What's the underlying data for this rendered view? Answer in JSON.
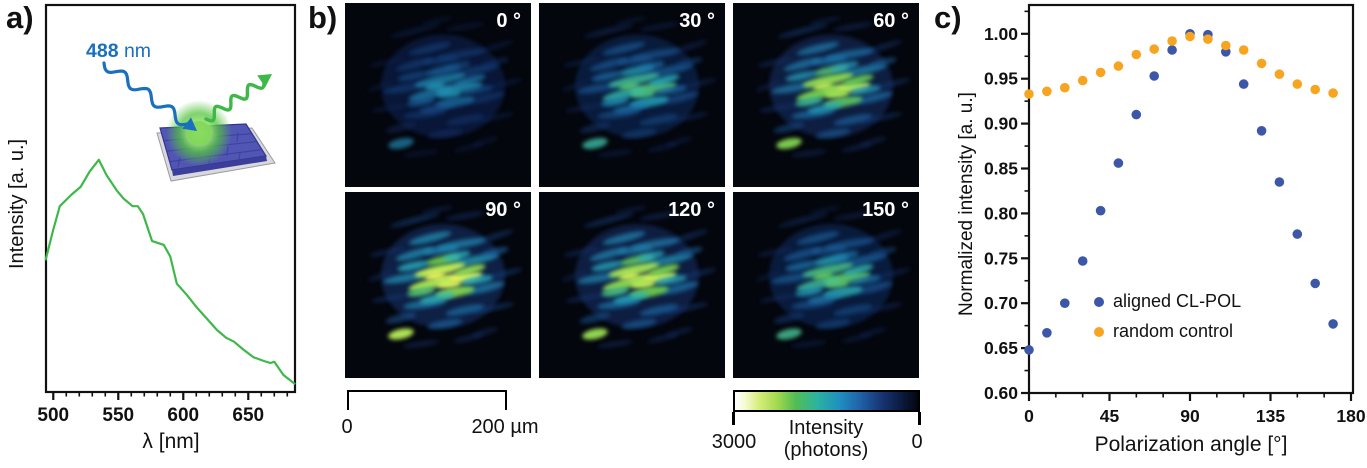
{
  "panel_a": {
    "label": "a)",
    "xlabel": "λ [nm]",
    "ylabel": "Intensity [a. u.]",
    "excitation": {
      "value": "488",
      "unit": " nm"
    }
  },
  "panel_b": {
    "label": "b)",
    "tiles": [
      {
        "label": "0 °",
        "relative_brightness": 0.55
      },
      {
        "label": "30 °",
        "relative_brightness": 0.72
      },
      {
        "label": "60 °",
        "relative_brightness": 0.91
      },
      {
        "label": "90 °",
        "relative_brightness": 1.0
      },
      {
        "label": "120 °",
        "relative_brightness": 0.95
      },
      {
        "label": "150 °",
        "relative_brightness": 0.75
      }
    ],
    "scale_bar": {
      "start_label": "0",
      "end_label": "200 µm"
    },
    "colorbar": {
      "left_label": "3000",
      "right_label": "0",
      "title_line1": "Intensity",
      "title_line2": "(photons)",
      "range_photons": [
        3000,
        0
      ]
    }
  },
  "panel_c": {
    "label": "c)",
    "xlabel": "Polarization angle [°]",
    "ylabel": "Normalized intensity [a. u.]",
    "legend": [
      {
        "label": "aligned CL-POL",
        "color": "#3c57a8"
      },
      {
        "label": "random control",
        "color": "#f7a521"
      }
    ]
  },
  "colors": {
    "spectrum_line": "#3eb848",
    "excitation_blue": "#1a6fbf",
    "aligned_series": "#3c57a8",
    "random_series": "#f7a521",
    "axis": "#111111"
  },
  "chart_data": [
    {
      "type": "line",
      "panel": "a",
      "title": "",
      "xlabel": "λ [nm]",
      "ylabel": "Intensity [a. u.]",
      "xlim": [
        494,
        686
      ],
      "ylim": [
        0,
        1
      ],
      "x_ticks": [
        500,
        550,
        600,
        650
      ],
      "x_minor_step": 10,
      "grid": false,
      "line_color": "#3eb848",
      "x": [
        494,
        500,
        505,
        514,
        521,
        528,
        535,
        541,
        549,
        554,
        561,
        565,
        569,
        576,
        585,
        590,
        595,
        603,
        610,
        618,
        626,
        633,
        639,
        646,
        654,
        662,
        667,
        670,
        677,
        685,
        686
      ],
      "y": [
        0.34,
        0.42,
        0.48,
        0.51,
        0.53,
        0.57,
        0.6,
        0.56,
        0.52,
        0.5,
        0.48,
        0.48,
        0.46,
        0.39,
        0.38,
        0.35,
        0.28,
        0.25,
        0.22,
        0.19,
        0.16,
        0.14,
        0.13,
        0.11,
        0.09,
        0.08,
        0.075,
        0.078,
        0.044,
        0.023,
        0.02
      ]
    },
    {
      "type": "scatter",
      "panel": "c",
      "title": "",
      "xlabel": "Polarization angle [°]",
      "ylabel": "Normalized intensity [a. u.]",
      "xlim": [
        0,
        181
      ],
      "ylim": [
        0.6,
        1.032
      ],
      "x_ticks": [
        0,
        45,
        90,
        135,
        180
      ],
      "x_minor_step": 15,
      "y_ticks": [
        0.6,
        0.65,
        0.7,
        0.75,
        0.8,
        0.85,
        0.9,
        0.95,
        1.0
      ],
      "y_minor_step": 0.025,
      "grid": false,
      "legend_position": "inside-left-middle",
      "x": [
        0,
        10,
        20,
        30,
        40,
        50,
        60,
        70,
        80,
        90,
        100,
        110,
        120,
        130,
        140,
        150,
        160,
        170
      ],
      "series": [
        {
          "name": "aligned CL-POL",
          "color": "#3c57a8",
          "values": [
            0.648,
            0.667,
            0.7,
            0.747,
            0.803,
            0.856,
            0.91,
            0.953,
            0.982,
            1.0,
            0.999,
            0.98,
            0.944,
            0.892,
            0.835,
            0.777,
            0.722,
            0.677
          ]
        },
        {
          "name": "random control",
          "color": "#f7a521",
          "values": [
            0.933,
            0.936,
            0.94,
            0.948,
            0.957,
            0.964,
            0.977,
            0.983,
            0.992,
            0.997,
            0.994,
            0.987,
            0.982,
            0.967,
            0.955,
            0.944,
            0.938,
            0.934
          ]
        }
      ]
    }
  ]
}
